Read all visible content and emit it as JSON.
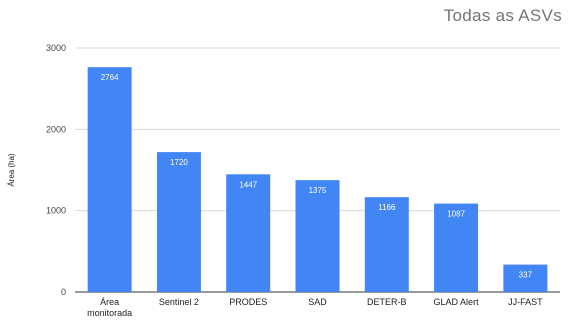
{
  "chart_data": {
    "type": "bar",
    "title": "Todas as ASVs",
    "xlabel": "",
    "ylabel": "Área (ha)",
    "ylim": [
      0,
      3000
    ],
    "yticks": [
      "0",
      "1000",
      "2000",
      "3000"
    ],
    "grid": true,
    "legend": "none",
    "bar_color": "#4285f4",
    "categories": [
      [
        "Área",
        "monitorada"
      ],
      [
        "Sentinel 2"
      ],
      [
        "PRODES"
      ],
      [
        "SAD"
      ],
      [
        "DETER-B"
      ],
      [
        "GLAD Alert"
      ],
      [
        "JJ-FAST"
      ]
    ],
    "values": [
      2764,
      1720,
      1447,
      1375,
      1166,
      1087,
      337
    ],
    "value_labels": [
      "2764",
      "1720",
      "1447",
      "1375",
      "1166",
      "1087",
      "337"
    ]
  }
}
